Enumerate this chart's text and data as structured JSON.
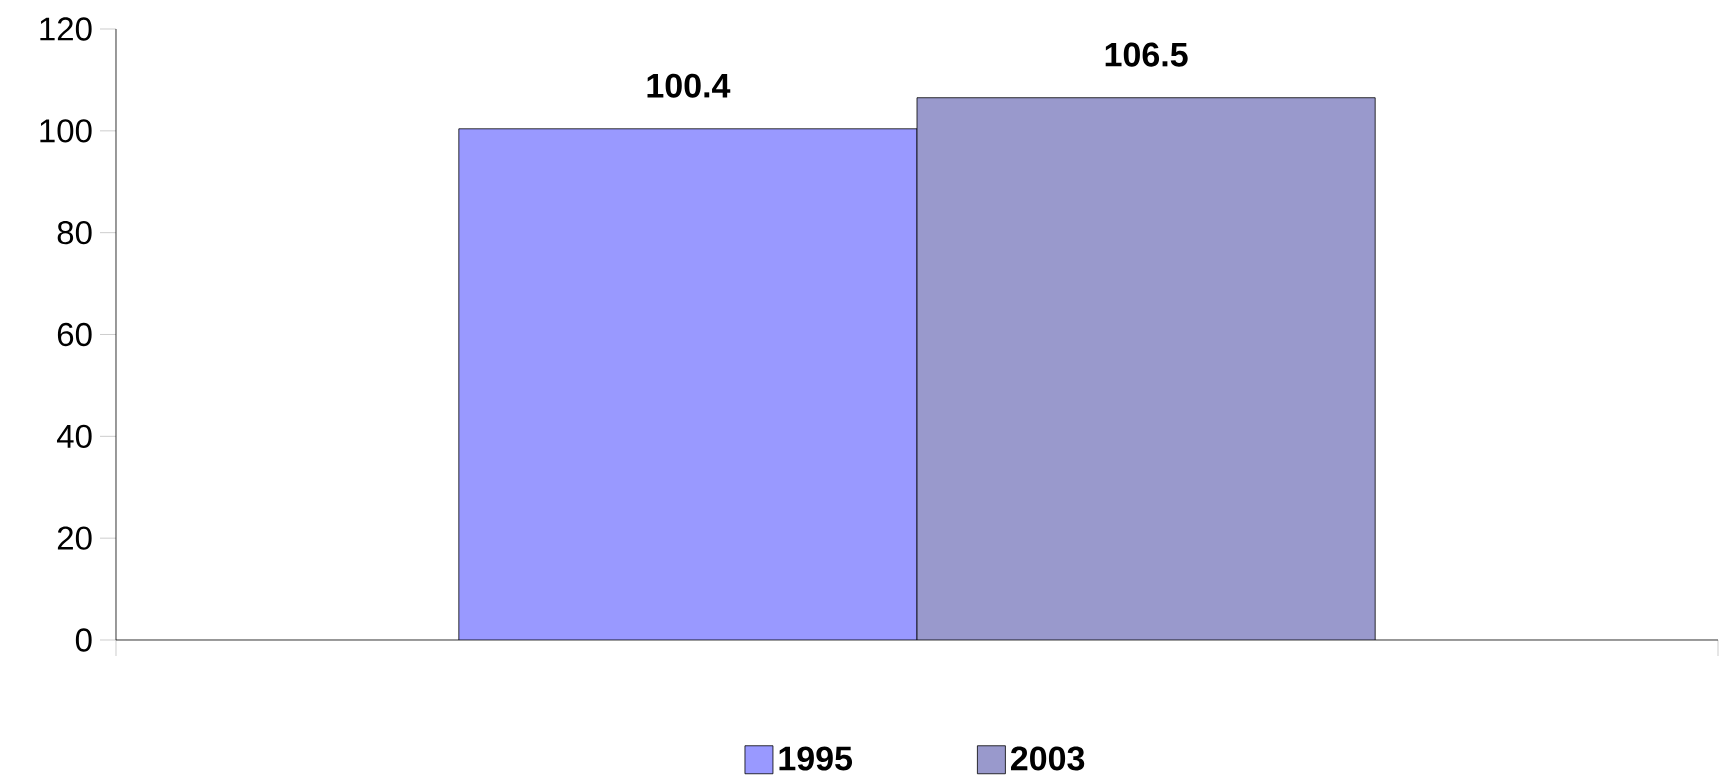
{
  "chart_data": {
    "type": "bar",
    "categories": [
      null
    ],
    "series": [
      {
        "name": "1995",
        "color": "#9999ff",
        "values": [
          100.4
        ]
      },
      {
        "name": "2003",
        "color": "#9999cc",
        "values": [
          106.5
        ]
      }
    ],
    "ylim": [
      0,
      120
    ],
    "yticks": [
      0,
      20,
      40,
      60,
      80,
      100,
      120
    ],
    "data_labels": true,
    "legend": "bottom"
  }
}
